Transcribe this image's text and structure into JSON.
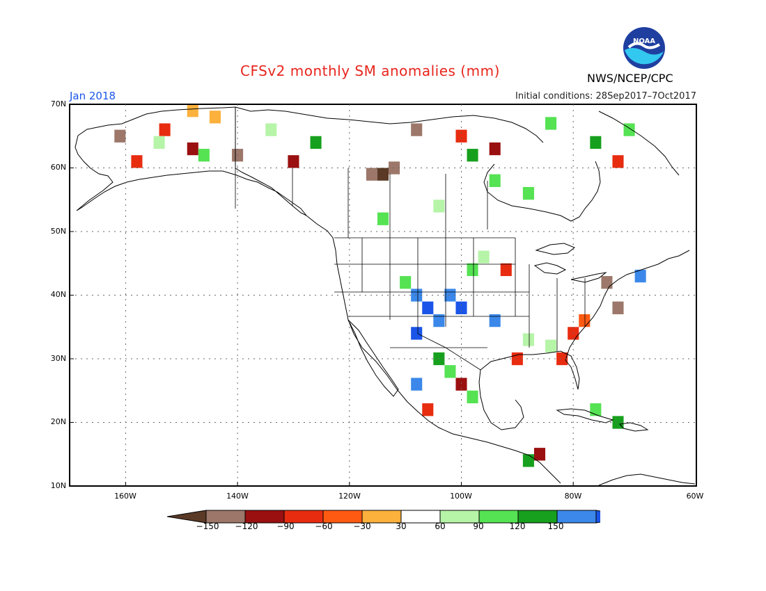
{
  "title": "CFSv2 monthly SM anomalies (mm)",
  "agency": "NWS/NCEP/CPC",
  "logo_text": "NOAA",
  "valid_month": "Jan 2018",
  "initial_conditions": "Initial conditions: 28Sep2017–7Oct2017",
  "map": {
    "lon_range": [
      -172,
      -60
    ],
    "lat_range": [
      10,
      70
    ],
    "lat_labels": [
      "70N",
      "60N",
      "50N",
      "40N",
      "30N",
      "20N",
      "10N"
    ],
    "lon_labels": [
      "160W",
      "140W",
      "120W",
      "100W",
      "80W",
      "60W"
    ],
    "gridlines": true
  },
  "colorbar": {
    "labels": [
      "−150",
      "−120",
      "−90",
      "−60",
      "−30",
      "30",
      "60",
      "90",
      "120",
      "150"
    ],
    "colors": [
      "#5a3a26",
      "#9c776a",
      "#9a0f0f",
      "#e82c10",
      "#ff5a12",
      "#fbb13c",
      "#ffffff",
      "#b6f4a8",
      "#55e253",
      "#17a01e",
      "#3b88ea",
      "#1a54e8"
    ]
  },
  "anomaly_cells": [
    {
      "lon": -150,
      "lat": 69,
      "level": 5
    },
    {
      "lon": -146,
      "lat": 68,
      "level": 5
    },
    {
      "lon": -155,
      "lat": 66,
      "level": 3
    },
    {
      "lon": -163,
      "lat": 65,
      "level": 1
    },
    {
      "lon": -150,
      "lat": 63,
      "level": 2
    },
    {
      "lon": -142,
      "lat": 62,
      "level": 1
    },
    {
      "lon": -160,
      "lat": 61,
      "level": 3
    },
    {
      "lon": -132,
      "lat": 61,
      "level": 2
    },
    {
      "lon": -118,
      "lat": 59,
      "level": 1
    },
    {
      "lon": -116,
      "lat": 59,
      "level": 0
    },
    {
      "lon": -114,
      "lat": 60,
      "level": 1
    },
    {
      "lon": -96,
      "lat": 63,
      "level": 2
    },
    {
      "lon": -102,
      "lat": 65,
      "level": 3
    },
    {
      "lon": -110,
      "lat": 66,
      "level": 1
    },
    {
      "lon": -74,
      "lat": 61,
      "level": 3
    },
    {
      "lon": -112,
      "lat": 42,
      "level": 8
    },
    {
      "lon": -110,
      "lat": 40,
      "level": 10
    },
    {
      "lon": -108,
      "lat": 38,
      "level": 11
    },
    {
      "lon": -106,
      "lat": 36,
      "level": 10
    },
    {
      "lon": -110,
      "lat": 34,
      "level": 11
    },
    {
      "lon": -104,
      "lat": 40,
      "level": 10
    },
    {
      "lon": -102,
      "lat": 38,
      "level": 11
    },
    {
      "lon": -100,
      "lat": 44,
      "level": 8
    },
    {
      "lon": -98,
      "lat": 46,
      "level": 7
    },
    {
      "lon": -106,
      "lat": 30,
      "level": 9
    },
    {
      "lon": -104,
      "lat": 28,
      "level": 8
    },
    {
      "lon": -102,
      "lat": 26,
      "level": 2
    },
    {
      "lon": -100,
      "lat": 24,
      "level": 8
    },
    {
      "lon": -110,
      "lat": 26,
      "level": 10
    },
    {
      "lon": -90,
      "lat": 33,
      "level": 7
    },
    {
      "lon": -86,
      "lat": 32,
      "level": 7
    },
    {
      "lon": -82,
      "lat": 34,
      "level": 3
    },
    {
      "lon": -80,
      "lat": 36,
      "level": 4
    },
    {
      "lon": -84,
      "lat": 30,
      "level": 3
    },
    {
      "lon": -92,
      "lat": 30,
      "level": 3
    },
    {
      "lon": -96,
      "lat": 36,
      "level": 10
    },
    {
      "lon": -94,
      "lat": 44,
      "level": 3
    },
    {
      "lon": -76,
      "lat": 42,
      "level": 1
    },
    {
      "lon": -74,
      "lat": 38,
      "level": 1
    },
    {
      "lon": -70,
      "lat": 43,
      "level": 10
    },
    {
      "lon": -74,
      "lat": 20,
      "level": 9
    },
    {
      "lon": -78,
      "lat": 22,
      "level": 8
    },
    {
      "lon": -88,
      "lat": 15,
      "level": 2
    },
    {
      "lon": -90,
      "lat": 14,
      "level": 9
    },
    {
      "lon": -108,
      "lat": 22,
      "level": 3
    },
    {
      "lon": -100,
      "lat": 62,
      "level": 9
    },
    {
      "lon": -96,
      "lat": 58,
      "level": 8
    },
    {
      "lon": -90,
      "lat": 56,
      "level": 8
    },
    {
      "lon": -106,
      "lat": 54,
      "level": 7
    },
    {
      "lon": -116,
      "lat": 52,
      "level": 8
    },
    {
      "lon": -128,
      "lat": 64,
      "level": 9
    },
    {
      "lon": -136,
      "lat": 66,
      "level": 7
    },
    {
      "lon": -148,
      "lat": 62,
      "level": 8
    },
    {
      "lon": -156,
      "lat": 64,
      "level": 7
    },
    {
      "lon": -86,
      "lat": 67,
      "level": 8
    },
    {
      "lon": -78,
      "lat": 64,
      "level": 9
    },
    {
      "lon": -72,
      "lat": 66,
      "level": 8
    }
  ]
}
